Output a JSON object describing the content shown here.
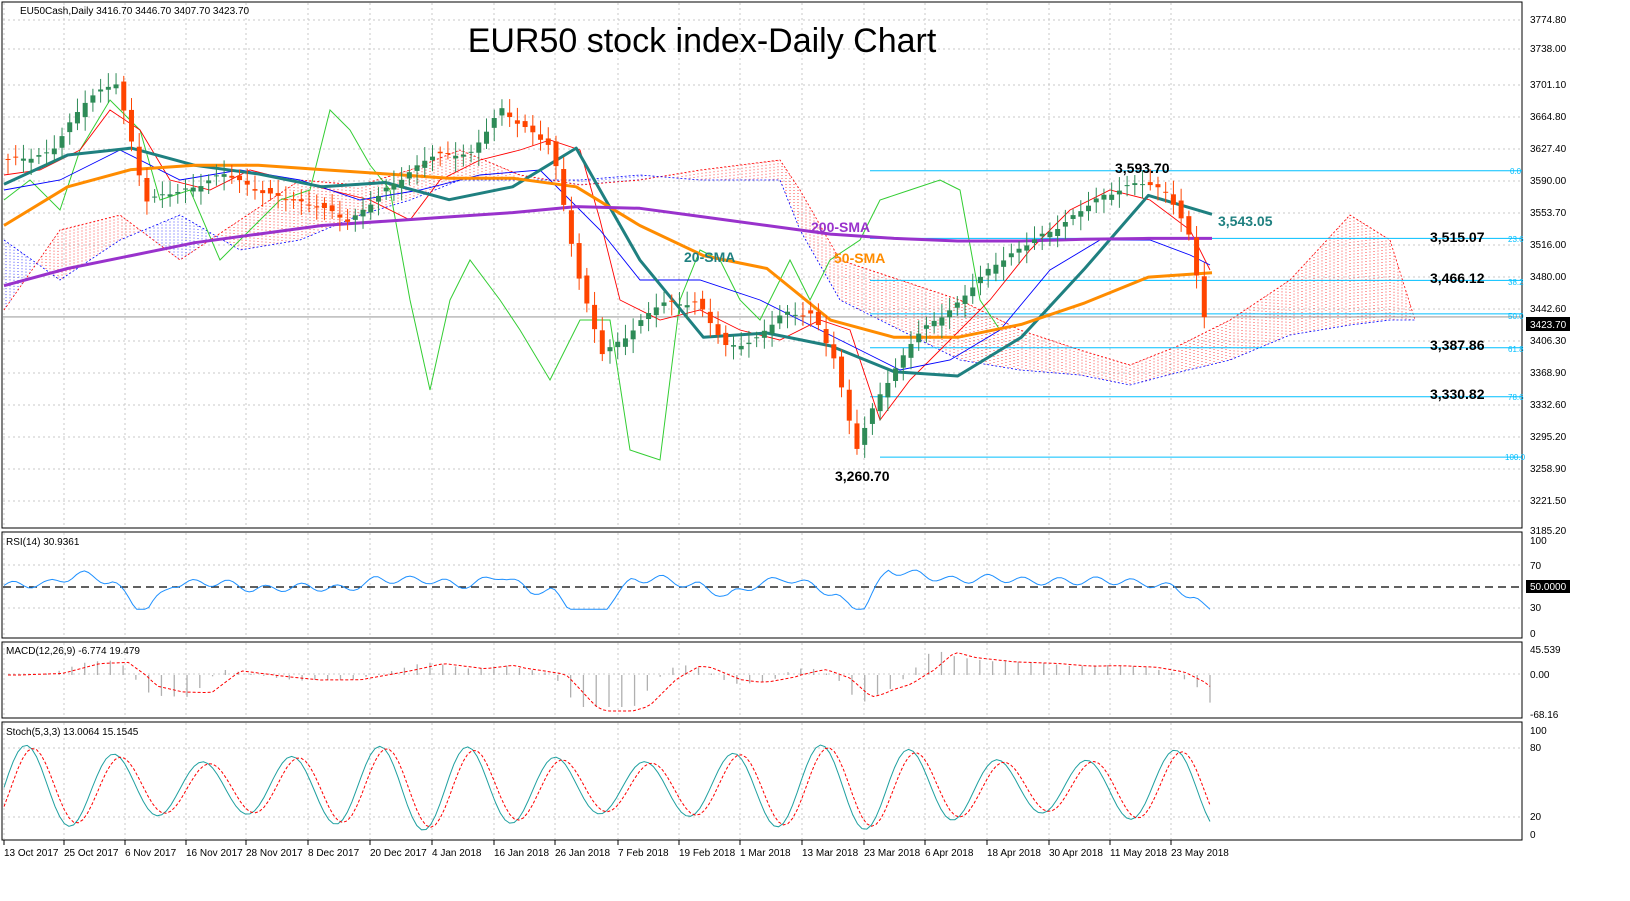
{
  "header": {
    "symbol_info": "EU50Cash,Daily  3416.70 3446.70 3407.70 3423.70",
    "title": "EUR50 stock index-Daily Chart"
  },
  "price_axis": {
    "ticks": [
      "3774.80",
      "3738.00",
      "3701.10",
      "3664.80",
      "3627.40",
      "3590.00",
      "3553.70",
      "3516.00",
      "3480.00",
      "3442.60",
      "3406.30",
      "3368.90",
      "3332.60",
      "3295.20",
      "3258.90",
      "3221.50",
      "3185.20"
    ],
    "current_price": "3423.70"
  },
  "date_axis": [
    "13 Oct 2017",
    "25 Oct 2017",
    "6 Nov 2017",
    "16 Nov 2017",
    "28 Nov 2017",
    "8 Dec 2017",
    "20 Dec 2017",
    "4 Jan 2018",
    "16 Jan 2018",
    "26 Jan 2018",
    "7 Feb 2018",
    "19 Feb 2018",
    "1 Mar 2018",
    "13 Mar 2018",
    "23 Mar 2018",
    "6 Apr 2018",
    "18 Apr 2018",
    "30 Apr 2018",
    "11 May 2018",
    "23 May 2018"
  ],
  "annotations": {
    "sma20": "20-SMA",
    "sma50": "50-SMA",
    "sma200": "200-SMA",
    "high": "3,593.70",
    "low": "3,260.70",
    "level_3543": "3,543.05",
    "level_3515": "3,515.07",
    "level_3466": "3,466.12",
    "level_3387": "3,387.86",
    "level_3330": "3,330.82"
  },
  "fibonacci": [
    "0.0",
    "23.6",
    "38.2",
    "50.0",
    "61.8",
    "78.6",
    "100.0"
  ],
  "rsi": {
    "label": "RSI(14) 30.9361",
    "ticks": [
      "100",
      "70",
      "30",
      "0"
    ],
    "mid_label": "50.0000"
  },
  "macd": {
    "label": "MACD(12,26,9) -6.774 19.479",
    "ticks": [
      "45.539",
      "0.00",
      "-68.16"
    ]
  },
  "stoch": {
    "label": "Stoch(5,3,3) 13.0064 15.1545",
    "ticks": [
      "100",
      "80",
      "20",
      "0"
    ]
  },
  "colors": {
    "bull": "#2e8b57",
    "bear": "#ff4500",
    "sma20": "#1f8080",
    "sma50": "#ff8c00",
    "sma200": "#9932cc",
    "fib": "#00bfff",
    "kumo_bull": "#0000ff",
    "kumo_bear": "#ff0000",
    "rsi": "#1e90ff",
    "signal": "#ff0000",
    "green_line": "#32cd32"
  },
  "chart_data": {
    "type": "candlestick",
    "title": "EUR50 stock index-Daily Chart",
    "x_range": [
      "13 Oct 2017",
      "30 May 2018"
    ],
    "ylim": [
      3185.2,
      3774.8
    ],
    "series": [
      {
        "name": "20-SMA",
        "values": [
          3578,
          3612,
          3620,
          3600,
          3590,
          3575,
          3580,
          3560,
          3575,
          3620,
          3490,
          3400,
          3405,
          3390,
          3360,
          3355,
          3400,
          3480,
          3565,
          3543
        ]
      },
      {
        "name": "50-SMA",
        "values": [
          3530,
          3575,
          3595,
          3600,
          3600,
          3595,
          3590,
          3585,
          3585,
          3575,
          3530,
          3495,
          3480,
          3420,
          3400,
          3400,
          3415,
          3440,
          3470,
          3475
        ]
      },
      {
        "name": "200-SMA",
        "values": [
          3460,
          3480,
          3495,
          3510,
          3520,
          3530,
          3535,
          3540,
          3545,
          3552,
          3550,
          3540,
          3530,
          3520,
          3515,
          3512,
          3512,
          3514,
          3515,
          3515
        ]
      }
    ],
    "key_levels": {
      "high": 3593.7,
      "low": 3260.7,
      "levels": [
        3543.05,
        3515.07,
        3466.12,
        3387.86,
        3330.82
      ],
      "last": 3423.7
    },
    "fibonacci_levels": {
      "0.0": 3593.7,
      "23.6": 3515.07,
      "38.2": 3466.12,
      "50.0": 3427.2,
      "61.8": 3387.86,
      "78.6": 3330.82,
      "100.0": 3260.7
    },
    "grid": true
  }
}
